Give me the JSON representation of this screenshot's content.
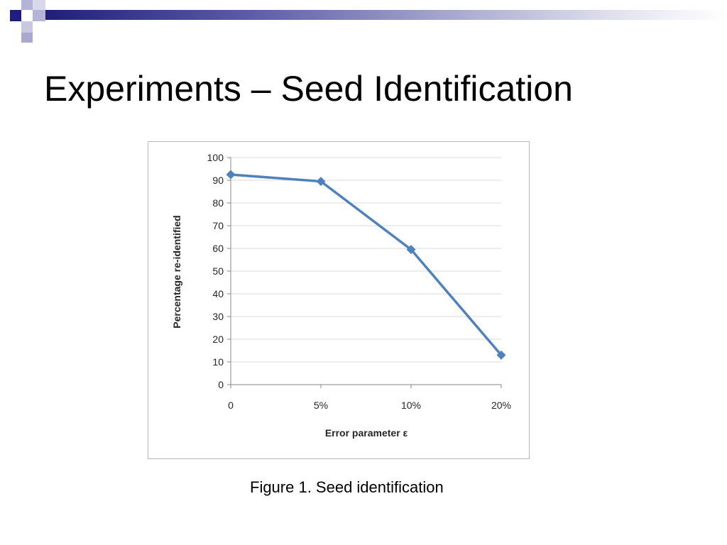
{
  "slide": {
    "title": "Experiments – Seed Identification",
    "caption": "Figure 1.  Seed identification"
  },
  "theme": {
    "header_dark": "#1f1f7a",
    "header_light": "#a9a9cf",
    "series_color": "#4f81bd",
    "grid_color": "#d9d9d9"
  },
  "chart_data": {
    "type": "line",
    "title": "",
    "xlabel": "Error parameter ε",
    "ylabel": "Percentage re-identified",
    "categories": [
      "0",
      "5%",
      "10%",
      "20%"
    ],
    "series": [
      {
        "values": [
          92.5,
          89.5,
          59.5,
          13
        ]
      }
    ],
    "ylim": [
      0,
      100
    ],
    "yticks": [
      0,
      10,
      20,
      30,
      40,
      50,
      60,
      70,
      80,
      90,
      100
    ],
    "grid": true,
    "marker": "diamond",
    "legend": "none"
  }
}
